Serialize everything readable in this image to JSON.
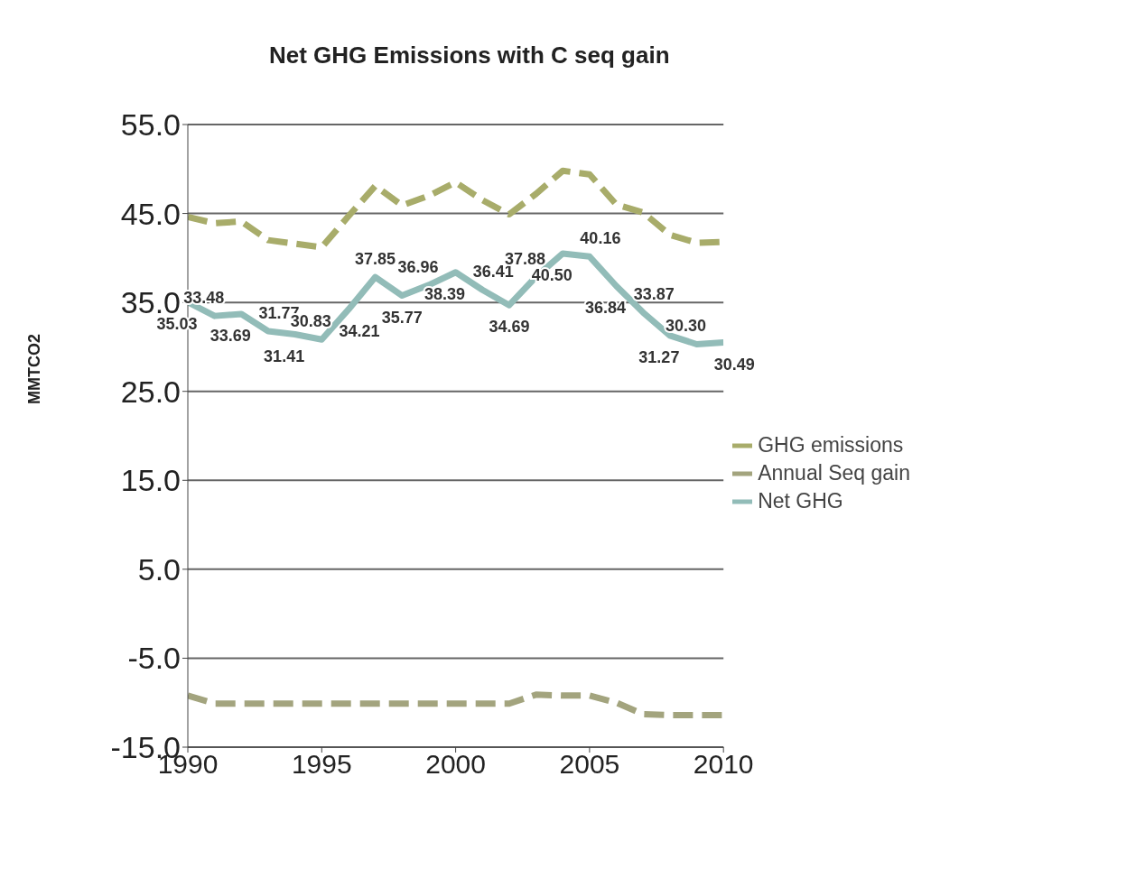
{
  "chart_data": {
    "type": "line",
    "title": "Net GHG Emissions with C seq gain",
    "ylabel": "MMTCO2",
    "x": [
      1990,
      1991,
      1992,
      1993,
      1994,
      1995,
      1996,
      1997,
      1998,
      1999,
      2000,
      2001,
      2002,
      2003,
      2004,
      2005,
      2006,
      2007,
      2008,
      2009,
      2010
    ],
    "xlim": [
      1990,
      2010
    ],
    "xticks": [
      1990,
      1995,
      2000,
      2005,
      2010
    ],
    "ylim": [
      -15,
      55
    ],
    "yticks": [
      {
        "value": -15,
        "label": "-15.0"
      },
      {
        "value": -5,
        "label": "-5.0"
      },
      {
        "value": 5,
        "label": "5.0"
      },
      {
        "value": 15,
        "label": "15.0"
      },
      {
        "value": 25,
        "label": "25.0"
      },
      {
        "value": 35,
        "label": "35.0"
      },
      {
        "value": 45,
        "label": "45.0"
      },
      {
        "value": 55,
        "label": "55.0"
      }
    ],
    "grid": "y",
    "legend": "right",
    "marker": "none",
    "series": [
      {
        "name": "GHG emissions",
        "color": "#a8ac6a",
        "line_style": "dashed",
        "values": [
          44.6,
          43.9,
          44.1,
          42.0,
          41.6,
          41.2,
          44.7,
          48.1,
          45.9,
          47.0,
          48.5,
          46.5,
          44.9,
          47.2,
          49.8,
          49.4,
          46.0,
          45.1,
          42.6,
          41.7,
          41.8
        ]
      },
      {
        "name": "Annual Seq gain",
        "color": "#a3a47e",
        "line_style": "dashed",
        "values": [
          -9.2,
          -10.1,
          -10.1,
          -10.1,
          -10.1,
          -10.1,
          -10.1,
          -10.1,
          -10.1,
          -10.1,
          -10.1,
          -10.1,
          -10.1,
          -9.1,
          -9.2,
          -9.2,
          -10.0,
          -11.3,
          -11.4,
          -11.4,
          -11.4
        ]
      },
      {
        "name": "Net GHG",
        "color": "#92bcb8",
        "line_style": "solid",
        "values": [
          35.03,
          33.48,
          33.69,
          31.77,
          31.41,
          30.83,
          34.21,
          37.85,
          35.77,
          36.96,
          38.39,
          36.41,
          34.69,
          37.88,
          40.5,
          40.16,
          36.84,
          33.87,
          31.27,
          30.3,
          30.49
        ],
        "value_labels": [
          "35.03",
          "33.48",
          "33.69",
          "31.77",
          "31.41",
          "30.83",
          "34.21",
          "37.85",
          "35.77",
          "36.96",
          "38.39",
          "36.41",
          "34.69",
          "37.88",
          "40.50",
          "40.16",
          "36.84",
          "33.87",
          "31.27",
          "30.30",
          "30.49"
        ]
      }
    ]
  }
}
